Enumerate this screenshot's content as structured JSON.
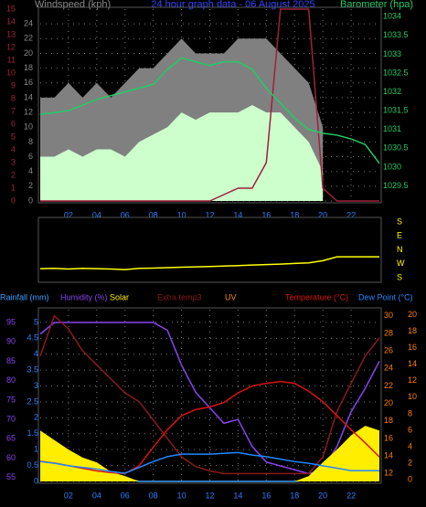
{
  "chart_data": [
    {
      "type": "line",
      "title": "24 hour graph data - 06 August 2025",
      "ylabel": "Windspeed (kph)",
      "y3label": "Barometer (hpa)",
      "grid": true,
      "x": [
        0,
        1,
        2,
        3,
        4,
        5,
        6,
        7,
        8,
        9,
        10,
        11,
        12,
        13,
        14,
        15,
        16,
        17,
        18,
        19,
        20,
        21,
        22,
        23,
        24
      ],
      "xlim": [
        0,
        24
      ],
      "xticks": [
        {
          "value": 2,
          "label": "02"
        },
        {
          "value": 4,
          "label": "04"
        },
        {
          "value": 6,
          "label": "06"
        },
        {
          "value": 8,
          "label": "08"
        },
        {
          "value": 10,
          "label": "10"
        },
        {
          "value": 12,
          "label": "12"
        },
        {
          "value": 14,
          "label": "14"
        },
        {
          "value": 16,
          "label": "16"
        },
        {
          "value": 18,
          "label": "18"
        },
        {
          "value": 20,
          "label": "20"
        },
        {
          "value": 22,
          "label": "22"
        }
      ],
      "ylim": [
        0,
        26
      ],
      "yticks": [
        0,
        2,
        4,
        6,
        8,
        10,
        12,
        14,
        16,
        18,
        20,
        22,
        24
      ],
      "y2lim": [
        0,
        15
      ],
      "y2ticks": [
        0,
        1,
        2,
        3,
        4,
        5,
        6,
        7,
        8,
        9,
        10,
        11,
        12,
        13,
        14,
        15
      ],
      "y3lim": [
        1029.1,
        1034.2
      ],
      "y3ticks": [
        1029.5,
        1030,
        1030.5,
        1031,
        1031.5,
        1032,
        1032.5,
        1033,
        1033.5,
        1034
      ],
      "axis_colors": {
        "y": "#8a8a8a",
        "y2": "#a0203c",
        "y3": "#22cc66"
      },
      "series": [
        {
          "color": "#808080",
          "style": "area",
          "values": [
            14,
            14,
            16,
            14,
            16,
            14,
            16,
            18,
            18,
            20,
            22,
            20,
            20,
            20,
            22,
            22,
            22,
            20,
            18,
            16,
            10,
            null,
            null,
            null,
            null
          ]
        },
        {
          "color": "#ccffcc",
          "style": "area",
          "values": [
            6,
            6,
            7,
            6,
            7,
            7,
            6,
            8,
            9,
            10,
            12,
            11,
            12,
            12,
            12,
            13,
            12,
            12,
            10,
            8,
            4,
            null,
            null,
            null,
            null
          ]
        },
        {
          "color": "#a0203c",
          "style": "line",
          "axis": "y2",
          "values": [
            0,
            0,
            0,
            0,
            0,
            0,
            0,
            0,
            0,
            0,
            0,
            0,
            0,
            0.5,
            1,
            1,
            3,
            15,
            15,
            15,
            1,
            0,
            0,
            0,
            0
          ]
        },
        {
          "color": "#22cc66",
          "style": "line",
          "axis": "y3",
          "values": [
            1031.4,
            1031.45,
            1031.5,
            1031.65,
            1031.8,
            1031.9,
            1032,
            1032.1,
            1032.2,
            1032.6,
            1032.9,
            1032.8,
            1032.7,
            1032.8,
            1032.8,
            1032.6,
            1032.1,
            1031.7,
            1031.3,
            1031,
            1030.9,
            1030.85,
            1030.75,
            1030.6,
            1030.1
          ]
        }
      ]
    },
    {
      "type": "line",
      "grid": false,
      "x": [
        0,
        1,
        2,
        3,
        4,
        5,
        6,
        7,
        8,
        9,
        10,
        11,
        12,
        13,
        14,
        15,
        16,
        17,
        18,
        19,
        20,
        21,
        22,
        23,
        24
      ],
      "xlim": [
        0,
        24
      ],
      "ylim": [
        162,
        558
      ],
      "yticks": [
        {
          "value": 180,
          "label": "S"
        },
        {
          "value": 270,
          "label": "W"
        },
        {
          "value": 360,
          "label": "N"
        },
        {
          "value": 450,
          "label": "E"
        },
        {
          "value": 540,
          "label": "S"
        }
      ],
      "axis_colors": {
        "y": "#ffff00"
      },
      "series": [
        {
          "color": "#ffff00",
          "style": "line",
          "values": [
            238,
            240,
            236,
            240,
            238,
            236,
            232,
            240,
            242,
            245,
            248,
            250,
            252,
            255,
            258,
            262,
            265,
            268,
            272,
            276,
            290,
            315,
            315,
            315,
            315
          ]
        }
      ]
    },
    {
      "type": "line",
      "grid": true,
      "x": [
        0,
        1,
        2,
        3,
        4,
        5,
        6,
        7,
        8,
        9,
        10,
        11,
        12,
        13,
        14,
        15,
        16,
        17,
        18,
        19,
        20,
        21,
        22,
        23,
        24
      ],
      "xlim": [
        0,
        24
      ],
      "xticks": [
        {
          "value": 2,
          "label": "02"
        },
        {
          "value": 4,
          "label": "04"
        },
        {
          "value": 6,
          "label": "06"
        },
        {
          "value": 8,
          "label": "08"
        },
        {
          "value": 10,
          "label": "10"
        },
        {
          "value": 12,
          "label": "12"
        },
        {
          "value": 14,
          "label": "14"
        },
        {
          "value": 16,
          "label": "16"
        },
        {
          "value": 18,
          "label": "18"
        },
        {
          "value": 20,
          "label": "20"
        },
        {
          "value": 22,
          "label": "22"
        }
      ],
      "ylim": [
        0,
        5.4
      ],
      "yticks": [
        0,
        0.5,
        1,
        1.5,
        2,
        2.5,
        3,
        3.5,
        4,
        4.5,
        5
      ],
      "y2lim": [
        54,
        98.3
      ],
      "y2ticks": [
        55,
        60,
        65,
        70,
        75,
        80,
        85,
        90,
        95
      ],
      "y3lim": [
        11.1,
        30.7
      ],
      "y3ticks": [
        12,
        14,
        16,
        18,
        20,
        22,
        24,
        26,
        28,
        30
      ],
      "y4lim": [
        -0.2,
        20.6
      ],
      "y4ticks": [
        0,
        2,
        4,
        6,
        8,
        10,
        12,
        14,
        16,
        18,
        20
      ],
      "axis_colors": {
        "y": "#2a7fff",
        "y2": "#8844ee",
        "y3": "#ff7f00",
        "y4": "#ff7f00"
      },
      "series": [
        {
          "name": "Rainfall (mm)",
          "color": "#3aa0ff",
          "style": "line",
          "values": [
            0.4,
            0.35,
            0.3,
            0.25,
            0.2,
            0.15,
            0.1,
            0,
            0,
            0,
            0,
            0,
            0,
            0,
            0,
            0,
            0,
            0,
            0,
            0.05,
            0.1,
            0.15,
            0.2,
            0.25,
            0.3
          ]
        },
        {
          "name": "Humidity (%)",
          "color": "#8844ee",
          "style": "line",
          "axis": "y2",
          "values": [
            92,
            95,
            95,
            95,
            95,
            95,
            95,
            95,
            95,
            93,
            84,
            77,
            73,
            69,
            70,
            63,
            59,
            58,
            57,
            56,
            57,
            63,
            72,
            78,
            85
          ]
        },
        {
          "name": "Solar",
          "color": "#ffee00",
          "style": "area",
          "values": [
            1.6,
            1.3,
            1.0,
            0.75,
            0.6,
            0.3,
            0.17,
            0,
            0,
            0,
            0,
            0,
            0,
            0,
            0,
            0,
            0,
            0,
            0,
            0.17,
            0.6,
            1.0,
            1.45,
            1.75,
            1.6
          ]
        },
        {
          "name": "Extra temp3",
          "color": "#8b1a1a",
          "style": "line",
          "axis": "y3",
          "values": [
            25.4,
            30,
            28.5,
            26,
            24.4,
            22.8,
            21.2,
            20.2,
            18.1,
            16,
            13.9,
            12.8,
            12.3,
            12,
            12,
            12,
            12,
            12,
            12,
            12,
            13.9,
            19.1,
            22.3,
            25.4,
            27.5
          ]
        },
        {
          "name": "UV",
          "color": "#ff8800",
          "style": "line",
          "values": [
            null,
            null,
            null,
            null,
            null,
            null,
            null,
            null,
            null,
            null,
            null,
            null,
            null,
            null,
            null,
            null,
            null,
            null,
            null,
            null,
            null,
            null,
            null,
            null,
            null
          ]
        },
        {
          "name": "Temperature (°C)",
          "color": "#dd1111",
          "style": "line",
          "axis": "y3",
          "values": [
            13.4,
            13.2,
            12.9,
            12.6,
            12.3,
            12.1,
            12,
            12.9,
            15,
            17,
            18.6,
            19.3,
            19.6,
            20.1,
            21.2,
            22,
            22.3,
            22.5,
            22.3,
            21.4,
            20.2,
            18.6,
            17,
            15.5,
            13.9
          ]
        },
        {
          "name": "Dew Point (°C)",
          "color": "#2288ff",
          "style": "line",
          "axis": "y4",
          "values": [
            2.2,
            2,
            1.7,
            1.5,
            1.3,
            1,
            0.8,
            1.5,
            2.2,
            2.8,
            3.1,
            3.1,
            3.1,
            3.2,
            3.3,
            3,
            2.8,
            2.5,
            2.2,
            2,
            1.7,
            1.4,
            1.1,
            1.1,
            1.1
          ]
        }
      ]
    }
  ]
}
